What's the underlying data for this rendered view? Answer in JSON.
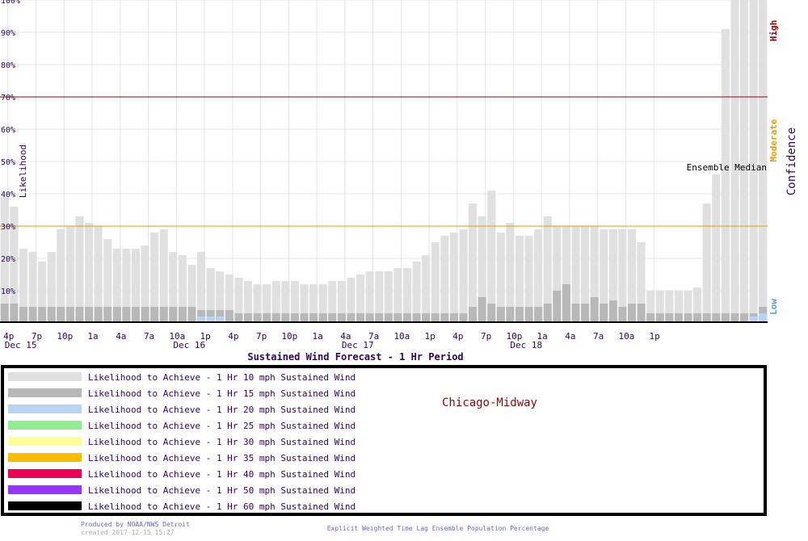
{
  "chart_data": {
    "type": "bar",
    "title": "Sustained Wind Forecast -  1 Hr Period",
    "ylabel": "Likelihood",
    "y2label": "Confidence",
    "ylim": [
      0,
      100
    ],
    "y_ticks": [
      "100%",
      "90%",
      "80%",
      "70%",
      "60%",
      "50%",
      "40%",
      "30%",
      "20%",
      "10%"
    ],
    "x_tick_labels": [
      "4p",
      "7p",
      "10p",
      "1a",
      "4a",
      "7a",
      "10a",
      "1p",
      "4p",
      "7p",
      "10p",
      "1a",
      "4a",
      "7a",
      "10a",
      "1p",
      "4p",
      "7p",
      "10p",
      "1a",
      "4a",
      "7a",
      "10a",
      "1p"
    ],
    "date_labels": [
      "Dec 15",
      "Dec 16",
      "Dec 17",
      "Dec 18"
    ],
    "confidence_levels": {
      "high": {
        "label": "High",
        "value": 70,
        "color": "#990000"
      },
      "moderate": {
        "label": "Moderate",
        "value": 30,
        "color": "#ee9900"
      },
      "low": {
        "label": "Low",
        "color": "#5599dd"
      }
    },
    "median_label": "Ensemble Median",
    "series": [
      {
        "name": "Likelihood to Achieve -  1 Hr 10 mph Sustained Wind",
        "color": "#e0e0e0",
        "values": [
          39,
          36,
          23,
          22,
          19,
          22,
          29,
          30,
          33,
          31,
          30,
          26,
          23,
          23,
          23,
          24,
          28,
          29,
          22,
          21,
          18,
          22,
          17,
          16,
          15,
          14,
          13,
          12,
          12,
          13,
          13,
          13,
          12,
          12,
          12,
          13,
          13,
          14,
          15,
          16,
          16,
          16,
          17,
          17,
          19,
          21,
          25,
          27,
          28,
          29,
          37,
          33,
          41,
          28,
          31,
          27,
          27,
          29,
          33,
          30,
          30,
          30,
          30,
          30,
          29,
          29,
          29,
          29,
          25,
          10,
          10,
          10,
          10,
          10,
          11,
          37,
          46,
          91,
          100,
          100,
          100,
          100
        ]
      },
      {
        "name": "Likelihood to Achieve -  1 Hr 15 mph Sustained Wind",
        "color": "#b8b8b8",
        "values": [
          6,
          6,
          5,
          5,
          5,
          5,
          5,
          5,
          5,
          5,
          5,
          5,
          5,
          5,
          5,
          5,
          5,
          5,
          5,
          5,
          5,
          4,
          4,
          4,
          4,
          3,
          3,
          3,
          3,
          3,
          3,
          3,
          3,
          3,
          3,
          3,
          3,
          3,
          3,
          3,
          3,
          3,
          3,
          3,
          3,
          3,
          3,
          3,
          3,
          3,
          5,
          8,
          6,
          5,
          5,
          5,
          5,
          5,
          6,
          10,
          12,
          6,
          6,
          8,
          6,
          7,
          5,
          6,
          6,
          3,
          3,
          3,
          3,
          3,
          3,
          3,
          3,
          3,
          3,
          3,
          3,
          5
        ]
      },
      {
        "name": "Likelihood to Achieve -  1 Hr 20 mph Sustained Wind",
        "color": "#b8d4f4",
        "values": [
          0,
          0,
          0,
          0,
          0,
          0,
          0,
          0,
          0,
          0,
          0,
          0,
          0,
          0,
          0,
          0,
          0,
          0,
          0,
          0,
          0,
          2,
          2,
          2,
          0,
          0,
          0,
          0,
          0,
          0,
          0,
          0,
          0,
          0,
          0,
          0,
          0,
          0,
          0,
          0,
          0,
          0,
          0,
          0,
          0,
          0,
          0,
          0,
          0,
          0,
          0,
          0,
          0,
          0,
          0,
          0,
          0,
          0,
          0,
          0,
          0,
          0,
          0,
          0,
          0,
          0,
          0,
          0,
          0,
          0,
          0,
          0,
          0,
          0,
          0,
          0,
          0,
          0,
          0,
          0,
          2,
          3
        ]
      },
      {
        "name": "Likelihood to Achieve -  1 Hr 25 mph Sustained Wind",
        "color": "#90ee90",
        "values": []
      },
      {
        "name": "Likelihood to Achieve -  1 Hr 30 mph Sustained Wind",
        "color": "#ffff99",
        "values": []
      },
      {
        "name": "Likelihood to Achieve -  1 Hr 35 mph Sustained Wind",
        "color": "#ffbb00",
        "values": []
      },
      {
        "name": "Likelihood to Achieve -  1 Hr 40 mph Sustained Wind",
        "color": "#ee0055",
        "values": []
      },
      {
        "name": "Likelihood to Achieve -  1 Hr 50 mph Sustained Wind",
        "color": "#9933ff",
        "values": []
      },
      {
        "name": "Likelihood to Achieve -  1 Hr 60 mph Sustained Wind",
        "color": "#000000",
        "values": []
      }
    ]
  },
  "legend": {
    "location": "Chicago-Midway"
  },
  "footer": {
    "producer": "Produced by NOAA/NWS Detroit",
    "created": "created 2017-12-15 15:27",
    "method": "Explicit Weighted Time Lag Ensemble Population Percentage"
  }
}
